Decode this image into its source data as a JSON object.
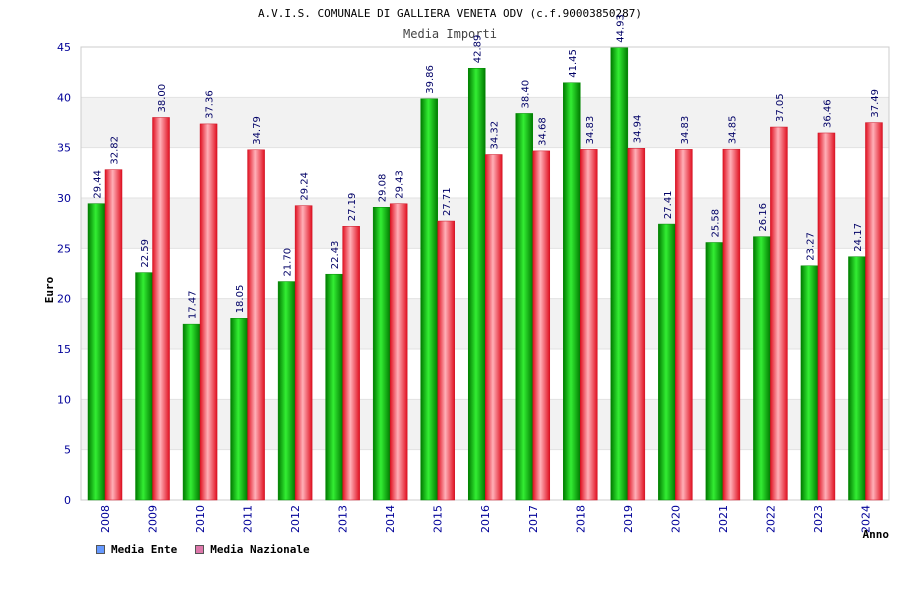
{
  "chart_data": {
    "type": "bar",
    "title": "A.V.I.S. COMUNALE DI GALLIERA VENETA ODV (c.f.90003850287)",
    "subtitle": "Media Importi",
    "xlabel": "Anno",
    "ylabel": "Euro",
    "ylim": [
      0,
      45
    ],
    "yticks": [
      0,
      5,
      10,
      15,
      20,
      25,
      30,
      35,
      40,
      45
    ],
    "categories": [
      "2008",
      "2009",
      "2010",
      "2011",
      "2012",
      "2013",
      "2014",
      "2015",
      "2016",
      "2017",
      "2018",
      "2019",
      "2020",
      "2021",
      "2022",
      "2023",
      "2024"
    ],
    "series": [
      {
        "name": "Media Ente",
        "color": "#00aa00",
        "values": [
          29.44,
          22.59,
          17.47,
          18.05,
          21.7,
          22.43,
          29.08,
          39.86,
          42.89,
          38.4,
          41.45,
          44.93,
          27.41,
          25.58,
          26.16,
          23.27,
          24.17
        ],
        "labels": [
          "29.44",
          "22.59",
          "17.47",
          "18.05",
          "21.70",
          "22.43",
          "29.08",
          "39.86",
          "42.89",
          "38.40",
          "41.45",
          "44.93",
          "27.41",
          "25.58",
          "26.16",
          "23.27",
          "24.17"
        ]
      },
      {
        "name": "Media Nazionale",
        "color": "#e8303c",
        "values": [
          32.82,
          38.0,
          37.36,
          34.79,
          29.24,
          27.19,
          29.43,
          27.71,
          34.32,
          34.68,
          34.83,
          34.94,
          34.83,
          34.85,
          37.05,
          36.46,
          37.49
        ],
        "labels": [
          "32.82",
          "38.00",
          "37.36",
          "34.79",
          "29.24",
          "27.19",
          "29.43",
          "27.71",
          "34.32",
          "34.68",
          "34.83",
          "34.94",
          "34.83",
          "34.85",
          "37.05",
          "36.46",
          "37.49"
        ]
      }
    ]
  },
  "legend": {
    "items": [
      {
        "label": "Media Ente",
        "color": "#6699ff"
      },
      {
        "label": "Media Nazionale",
        "color": "#dd77aa"
      }
    ]
  }
}
